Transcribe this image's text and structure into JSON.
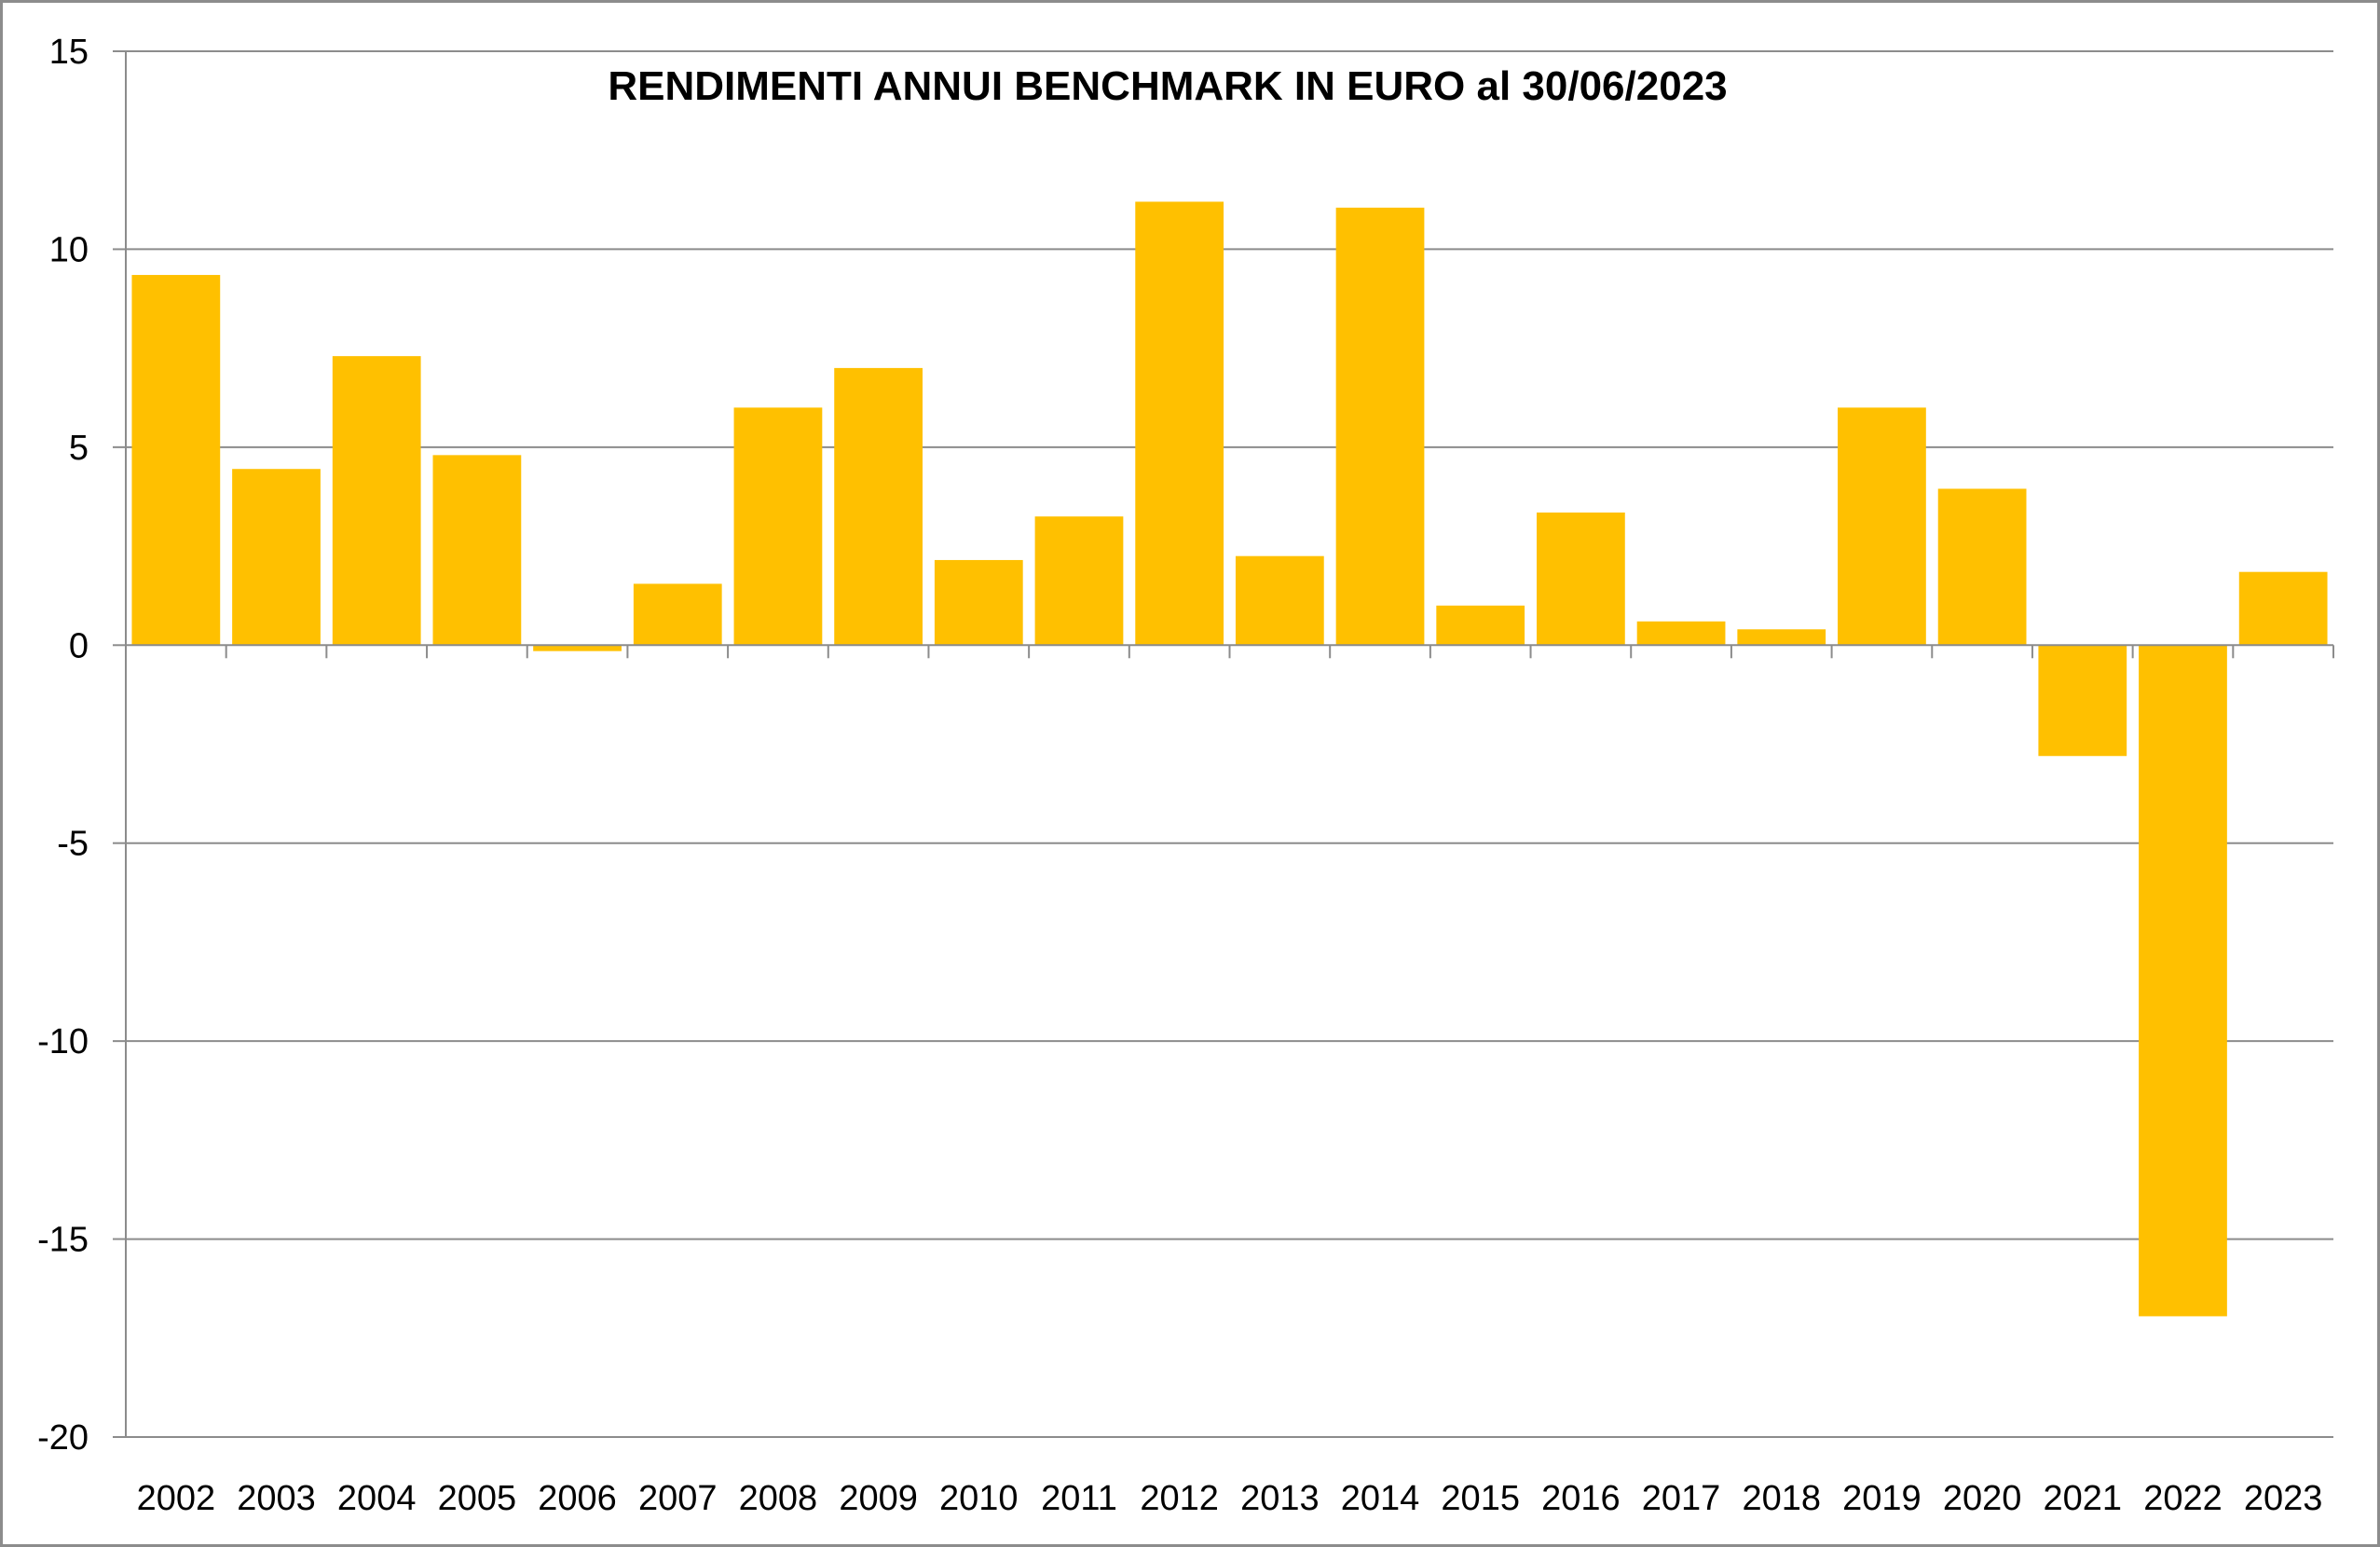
{
  "chart_data": {
    "type": "bar",
    "title": "RENDIMENTI ANNUI BENCHMARK IN EURO al 30/06/2023",
    "xlabel": "",
    "ylabel": "",
    "categories": [
      "2002",
      "2003",
      "2004",
      "2005",
      "2006",
      "2007",
      "2008",
      "2009",
      "2010",
      "2011",
      "2012",
      "2013",
      "2014",
      "2015",
      "2016",
      "2017",
      "2018",
      "2019",
      "2020",
      "2021",
      "2022",
      "2023"
    ],
    "values": [
      9.35,
      4.45,
      7.3,
      4.8,
      -0.15,
      1.55,
      6.0,
      7.0,
      2.15,
      3.25,
      11.2,
      2.25,
      11.05,
      1.0,
      3.35,
      0.6,
      0.4,
      6.0,
      3.95,
      -2.8,
      -16.95,
      1.85
    ],
    "ylim": [
      -20,
      15
    ],
    "y_ticks": [
      "15",
      "10",
      "5",
      "0",
      "-5",
      "-10",
      "-15",
      "-20"
    ],
    "y_tick_values": [
      15,
      10,
      5,
      0,
      -5,
      -10,
      -15,
      -20
    ],
    "grid": true,
    "legend": "none",
    "colors": {
      "bar": "#FFC000",
      "grid": "#8c8c8c",
      "axis": "#8c8c8c"
    }
  }
}
